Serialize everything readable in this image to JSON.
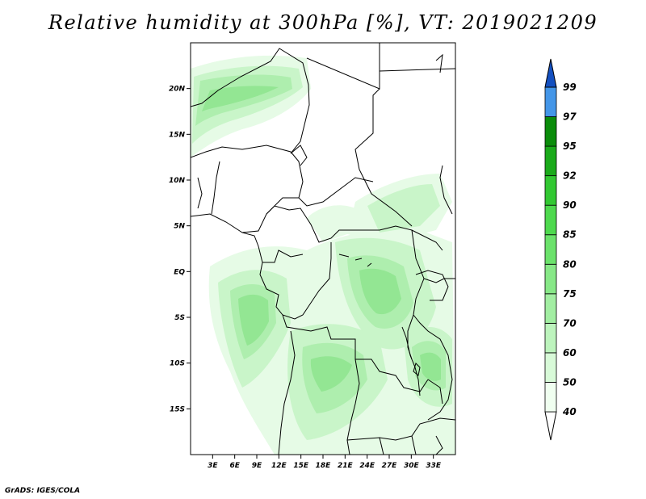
{
  "title": "Relative humidity at 300hPa [%], VT: 2019021209",
  "credit": "GrADS: IGES/COLA",
  "map": {
    "lon_min": 0,
    "lon_max": 36,
    "lat_min": -20,
    "lat_max": 25,
    "lat_ticks": [
      {
        "label": "20N",
        "lat": 20
      },
      {
        "label": "15N",
        "lat": 15
      },
      {
        "label": "10N",
        "lat": 10
      },
      {
        "label": "5N",
        "lat": 5
      },
      {
        "label": "EQ",
        "lat": 0
      },
      {
        "label": "5S",
        "lat": -5
      },
      {
        "label": "10S",
        "lat": -10
      },
      {
        "label": "15S",
        "lat": -15
      }
    ],
    "lon_ticks": [
      {
        "label": "3E",
        "lon": 3
      },
      {
        "label": "6E",
        "lon": 6
      },
      {
        "label": "9E",
        "lon": 9
      },
      {
        "label": "12E",
        "lon": 12
      },
      {
        "label": "15E",
        "lon": 15
      },
      {
        "label": "18E",
        "lon": 18
      },
      {
        "label": "21E",
        "lon": 21
      },
      {
        "label": "24E",
        "lon": 24
      },
      {
        "label": "27E",
        "lon": 27
      },
      {
        "label": "30E",
        "lon": 30
      },
      {
        "label": "33E",
        "lon": 33
      }
    ]
  },
  "colorbar": {
    "levels": [
      "40",
      "50",
      "60",
      "70",
      "75",
      "80",
      "85",
      "90",
      "92",
      "95",
      "97",
      "99"
    ],
    "colors": [
      "#f0fff0",
      "#d8fad8",
      "#bdf4bd",
      "#a2eea2",
      "#87e887",
      "#6be26b",
      "#4ed94e",
      "#32c832",
      "#1aaa1a",
      "#0a8c0a",
      "#4496e8",
      "#1e6ed6",
      "#1450c0"
    ]
  }
}
